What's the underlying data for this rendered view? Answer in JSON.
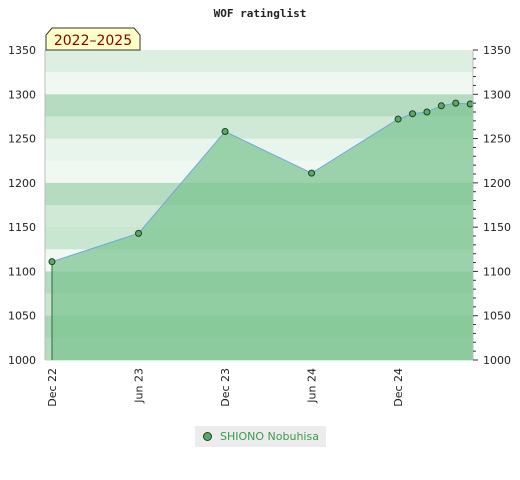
{
  "chart_data": {
    "type": "area",
    "title": "WOF ratinglist",
    "badge": "2022–2025",
    "xlabel": "",
    "ylabel": "",
    "x_tick_labels": [
      "Dec 22",
      "Jun 23",
      "Dec 23",
      "Jun 24",
      "Dec 24"
    ],
    "y_tick_labels": [
      "1000",
      "1050",
      "1100",
      "1150",
      "1200",
      "1250",
      "1300",
      "1350"
    ],
    "ylim": [
      1000,
      1350
    ],
    "grid": "horizontal alternating bands",
    "legend_position": "bottom",
    "series": [
      {
        "name": "SHIONO Nobuhisa",
        "x": [
          "2022-12",
          "2023-06",
          "2023-12",
          "2024-06",
          "2024-12",
          "2025-01",
          "2025-02",
          "2025-03",
          "2025-04",
          "2025-05"
        ],
        "values": [
          1111,
          1143,
          1258,
          1211,
          1272,
          1278,
          1280,
          1287,
          1290,
          1289
        ]
      }
    ],
    "colors": {
      "fill": "#7fc593",
      "line": "#6fa8dc",
      "marker": "#5aa86a",
      "marker_edge": "#1f3f1f",
      "legend_text": "#3a9a4f",
      "badge_bg": "#ffffc8"
    }
  }
}
